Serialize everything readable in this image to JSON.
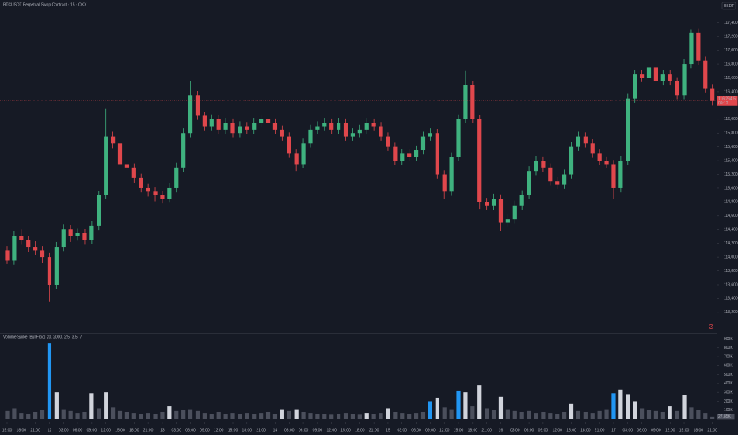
{
  "chart_data": {
    "type": "candlestick",
    "title": "BTCUSDT Perpetual Swap Contract · 15 · OKX",
    "currency": "USDT",
    "up_color": "#3fb27f",
    "down_color": "#e0474c",
    "ylim": [
      112900,
      117730
    ],
    "yticks": [
      {
        "value": 113200,
        "label": "113,200.0"
      },
      {
        "value": 113400,
        "label": "113,400.0"
      },
      {
        "value": 113600,
        "label": "113,600.0"
      },
      {
        "value": 113800,
        "label": "113,800.0"
      },
      {
        "value": 114000,
        "label": "114,000.0"
      },
      {
        "value": 114200,
        "label": "114,200.0"
      },
      {
        "value": 114400,
        "label": "114,400.0"
      },
      {
        "value": 114600,
        "label": "114,600.0"
      },
      {
        "value": 114800,
        "label": "114,800.0"
      },
      {
        "value": 115000,
        "label": "115,000.0"
      },
      {
        "value": 115200,
        "label": "115,200.0"
      },
      {
        "value": 115400,
        "label": "115,400.0"
      },
      {
        "value": 115600,
        "label": "115,600.0"
      },
      {
        "value": 115800,
        "label": "115,800.0"
      },
      {
        "value": 116000,
        "label": "116,000.0"
      },
      {
        "value": 116400,
        "label": "116,400.0"
      },
      {
        "value": 116600,
        "label": "116,600.0"
      },
      {
        "value": 116800,
        "label": "116,800.0"
      },
      {
        "value": 117000,
        "label": "117,000.0"
      },
      {
        "value": 117200,
        "label": "117,200.0"
      },
      {
        "value": 117400,
        "label": "117,400.0"
      }
    ],
    "last_label": "116,264.5",
    "countdown": "09:12",
    "xlim": [
      -1.01,
      100.6
    ],
    "xticks": [
      {
        "value": 0,
        "label": "15:00"
      },
      {
        "value": 2,
        "label": "18:00"
      },
      {
        "value": 4,
        "label": "21:00"
      },
      {
        "value": 6,
        "label": "12"
      },
      {
        "value": 8,
        "label": "03:00"
      },
      {
        "value": 10,
        "label": "06:00"
      },
      {
        "value": 12,
        "label": "09:00"
      },
      {
        "value": 14,
        "label": "12:00"
      },
      {
        "value": 16,
        "label": "15:00"
      },
      {
        "value": 18,
        "label": "18:00"
      },
      {
        "value": 20,
        "label": "21:00"
      },
      {
        "value": 22,
        "label": "13"
      },
      {
        "value": 24,
        "label": "03:00"
      },
      {
        "value": 26,
        "label": "06:00"
      },
      {
        "value": 28,
        "label": "09:00"
      },
      {
        "value": 30,
        "label": "12:00"
      },
      {
        "value": 32,
        "label": "15:00"
      },
      {
        "value": 34,
        "label": "18:00"
      },
      {
        "value": 36,
        "label": "21:00"
      },
      {
        "value": 38,
        "label": "14"
      },
      {
        "value": 40,
        "label": "03:00"
      },
      {
        "value": 42,
        "label": "06:00"
      },
      {
        "value": 44,
        "label": "09:00"
      },
      {
        "value": 46,
        "label": "12:00"
      },
      {
        "value": 48,
        "label": "15:00"
      },
      {
        "value": 50,
        "label": "18:00"
      },
      {
        "value": 52,
        "label": "21:00"
      },
      {
        "value": 54,
        "label": "15"
      },
      {
        "value": 56,
        "label": "03:00"
      },
      {
        "value": 58,
        "label": "06:00"
      },
      {
        "value": 60,
        "label": "09:00"
      },
      {
        "value": 62,
        "label": "12:00"
      },
      {
        "value": 64,
        "label": "15:00"
      },
      {
        "value": 66,
        "label": "18:00"
      },
      {
        "value": 68,
        "label": "21:00"
      },
      {
        "value": 70,
        "label": "16"
      },
      {
        "value": 72,
        "label": "03:00"
      },
      {
        "value": 74,
        "label": "06:00"
      },
      {
        "value": 76,
        "label": "09:00"
      },
      {
        "value": 78,
        "label": "12:00"
      },
      {
        "value": 80,
        "label": "15:00"
      },
      {
        "value": 82,
        "label": "18:00"
      },
      {
        "value": 84,
        "label": "21:00"
      },
      {
        "value": 86,
        "label": "17"
      },
      {
        "value": 88,
        "label": "03:00"
      },
      {
        "value": 90,
        "label": "06:00"
      },
      {
        "value": 92,
        "label": "09:00"
      },
      {
        "value": 94,
        "label": "12:00"
      },
      {
        "value": 96,
        "label": "15:00"
      },
      {
        "value": 98,
        "label": "18:00"
      },
      {
        "value": 100,
        "label": "21:00"
      }
    ],
    "candles": [
      [
        114100,
        114160,
        113900,
        113950
      ],
      [
        113950,
        114380,
        113890,
        114300
      ],
      [
        114300,
        114400,
        114180,
        114250
      ],
      [
        114250,
        114310,
        114080,
        114150
      ],
      [
        114150,
        114230,
        114030,
        114100
      ],
      [
        114100,
        114160,
        113920,
        114000
      ],
      [
        114000,
        114060,
        113350,
        113600
      ],
      [
        113600,
        114220,
        113540,
        114150
      ],
      [
        114150,
        114480,
        114090,
        114400
      ],
      [
        114400,
        114460,
        114220,
        114300
      ],
      [
        114300,
        114420,
        114240,
        114350
      ],
      [
        114350,
        114410,
        114180,
        114250
      ],
      [
        114250,
        114520,
        114190,
        114450
      ],
      [
        114450,
        114960,
        114390,
        114900
      ],
      [
        114900,
        116150,
        114840,
        115750
      ],
      [
        115750,
        115820,
        115580,
        115650
      ],
      [
        115650,
        115710,
        115290,
        115350
      ],
      [
        115350,
        115420,
        115230,
        115300
      ],
      [
        115300,
        115360,
        115080,
        115150
      ],
      [
        115150,
        115210,
        114940,
        115000
      ],
      [
        115000,
        115060,
        114880,
        114950
      ],
      [
        114950,
        115010,
        114810,
        114900
      ],
      [
        114900,
        114960,
        114780,
        114850
      ],
      [
        114850,
        115070,
        114790,
        115000
      ],
      [
        115000,
        115370,
        114940,
        115300
      ],
      [
        115300,
        115870,
        115240,
        115800
      ],
      [
        115800,
        116550,
        115740,
        116350
      ],
      [
        116350,
        116410,
        115990,
        116050
      ],
      [
        116050,
        116110,
        115840,
        115900
      ],
      [
        115900,
        116070,
        115840,
        116000
      ],
      [
        116000,
        116060,
        115790,
        115850
      ],
      [
        115850,
        116020,
        115790,
        115950
      ],
      [
        115950,
        116010,
        115740,
        115800
      ],
      [
        115800,
        115970,
        115740,
        115900
      ],
      [
        115900,
        115960,
        115790,
        115850
      ],
      [
        115850,
        116020,
        115790,
        115950
      ],
      [
        115950,
        116070,
        115890,
        116000
      ],
      [
        116000,
        116060,
        115890,
        115950
      ],
      [
        115950,
        116010,
        115790,
        115850
      ],
      [
        115850,
        115910,
        115690,
        115750
      ],
      [
        115750,
        115810,
        115440,
        115500
      ],
      [
        115500,
        115560,
        115250,
        115350
      ],
      [
        115350,
        115720,
        115290,
        115650
      ],
      [
        115650,
        115920,
        115590,
        115850
      ],
      [
        115850,
        115970,
        115790,
        115900
      ],
      [
        115900,
        116020,
        115840,
        115950
      ],
      [
        115950,
        116010,
        115790,
        115850
      ],
      [
        115850,
        116020,
        115790,
        115950
      ],
      [
        115950,
        116010,
        115690,
        115750
      ],
      [
        115750,
        115870,
        115690,
        115800
      ],
      [
        115800,
        115920,
        115740,
        115850
      ],
      [
        115850,
        116020,
        115790,
        115950
      ],
      [
        115950,
        116010,
        115840,
        115900
      ],
      [
        115900,
        115960,
        115690,
        115750
      ],
      [
        115750,
        115810,
        115540,
        115600
      ],
      [
        115600,
        115660,
        115340,
        115400
      ],
      [
        115400,
        115570,
        115340,
        115500
      ],
      [
        115500,
        115560,
        115390,
        115450
      ],
      [
        115450,
        115620,
        115390,
        115550
      ],
      [
        115550,
        115820,
        115490,
        115750
      ],
      [
        115750,
        115870,
        115690,
        115800
      ],
      [
        115800,
        115860,
        115140,
        115200
      ],
      [
        115200,
        115260,
        114850,
        114950
      ],
      [
        114950,
        115520,
        114890,
        115450
      ],
      [
        115450,
        116070,
        115390,
        116000
      ],
      [
        116000,
        116700,
        115940,
        116500
      ],
      [
        116500,
        116560,
        115940,
        116000
      ],
      [
        116000,
        116060,
        114700,
        114800
      ],
      [
        114800,
        114860,
        114690,
        114750
      ],
      [
        114750,
        114920,
        114690,
        114850
      ],
      [
        114850,
        114910,
        114380,
        114500
      ],
      [
        114500,
        114620,
        114440,
        114550
      ],
      [
        114550,
        114820,
        114490,
        114750
      ],
      [
        114750,
        114970,
        114690,
        114900
      ],
      [
        114900,
        115320,
        114840,
        115250
      ],
      [
        115250,
        115470,
        115190,
        115400
      ],
      [
        115400,
        115460,
        115240,
        115300
      ],
      [
        115300,
        115360,
        115040,
        115100
      ],
      [
        115100,
        115160,
        114990,
        115050
      ],
      [
        115050,
        115270,
        114990,
        115200
      ],
      [
        115200,
        115670,
        115140,
        115600
      ],
      [
        115600,
        115820,
        115540,
        115750
      ],
      [
        115750,
        115810,
        115590,
        115650
      ],
      [
        115650,
        115710,
        115440,
        115500
      ],
      [
        115500,
        115560,
        115340,
        115400
      ],
      [
        115400,
        115460,
        115290,
        115350
      ],
      [
        115350,
        115410,
        114850,
        115000
      ],
      [
        115000,
        115470,
        114940,
        115400
      ],
      [
        115400,
        116370,
        115340,
        116300
      ],
      [
        116300,
        116720,
        116240,
        116650
      ],
      [
        116650,
        116710,
        116540,
        116600
      ],
      [
        116600,
        116820,
        116540,
        116750
      ],
      [
        116750,
        116810,
        116490,
        116550
      ],
      [
        116550,
        116720,
        116490,
        116650
      ],
      [
        116650,
        116710,
        116490,
        116550
      ],
      [
        116550,
        116610,
        116290,
        116350
      ],
      [
        116350,
        116870,
        116290,
        116800
      ],
      [
        116800,
        117300,
        116740,
        117250
      ],
      [
        117250,
        117310,
        116790,
        116850
      ],
      [
        116850,
        116910,
        116390,
        116450
      ],
      [
        116450,
        116510,
        116200,
        116264.5
      ]
    ],
    "volume": {
      "type": "bar",
      "title": "Volume Spike [BullFrog] 20, 2000, 2.5, 3.5, 7",
      "ylim": [
        0,
        940000
      ],
      "yticks": [
        {
          "value": 100000,
          "label": "100K"
        },
        {
          "value": 200000,
          "label": "200K"
        },
        {
          "value": 300000,
          "label": "300K"
        },
        {
          "value": 400000,
          "label": "400K"
        },
        {
          "value": 500000,
          "label": "500K"
        },
        {
          "value": 600000,
          "label": "600K"
        },
        {
          "value": 700000,
          "label": "700K"
        },
        {
          "value": 800000,
          "label": "800K"
        },
        {
          "value": 900000,
          "label": "900K"
        }
      ],
      "last_label": "27.85K",
      "values": [
        90000,
        120000,
        70000,
        60000,
        80000,
        100000,
        850000,
        300000,
        110000,
        90000,
        70000,
        80000,
        290000,
        120000,
        300000,
        130000,
        90000,
        80000,
        70000,
        60000,
        70000,
        60000,
        80000,
        150000,
        90000,
        100000,
        110000,
        90000,
        70000,
        60000,
        80000,
        60000,
        70000,
        60000,
        70000,
        60000,
        70000,
        80000,
        60000,
        110000,
        90000,
        110000,
        80000,
        70000,
        60000,
        60000,
        50000,
        60000,
        70000,
        60000,
        50000,
        70000,
        60000,
        70000,
        120000,
        80000,
        70000,
        60000,
        70000,
        80000,
        200000,
        240000,
        130000,
        110000,
        320000,
        300000,
        150000,
        380000,
        120000,
        100000,
        250000,
        110000,
        90000,
        80000,
        90000,
        70000,
        80000,
        70000,
        60000,
        80000,
        170000,
        90000,
        80000,
        70000,
        90000,
        110000,
        290000,
        330000,
        280000,
        200000,
        120000,
        100000,
        90000,
        80000,
        150000,
        90000,
        270000,
        130000,
        100000,
        70000,
        27850
      ],
      "colors": [
        "#4b4f5c",
        "#4b4f5c",
        "#4b4f5c",
        "#4b4f5c",
        "#4b4f5c",
        "#4b4f5c",
        "#2196f3",
        "#d1d4dc",
        "#4b4f5c",
        "#4b4f5c",
        "#4b4f5c",
        "#4b4f5c",
        "#d1d4dc",
        "#4b4f5c",
        "#d1d4dc",
        "#4b4f5c",
        "#4b4f5c",
        "#4b4f5c",
        "#4b4f5c",
        "#4b4f5c",
        "#4b4f5c",
        "#4b4f5c",
        "#4b4f5c",
        "#d1d4dc",
        "#4b4f5c",
        "#4b4f5c",
        "#4b4f5c",
        "#4b4f5c",
        "#4b4f5c",
        "#4b4f5c",
        "#4b4f5c",
        "#4b4f5c",
        "#4b4f5c",
        "#4b4f5c",
        "#4b4f5c",
        "#4b4f5c",
        "#4b4f5c",
        "#4b4f5c",
        "#4b4f5c",
        "#d1d4dc",
        "#4b4f5c",
        "#d1d4dc",
        "#4b4f5c",
        "#4b4f5c",
        "#4b4f5c",
        "#4b4f5c",
        "#4b4f5c",
        "#4b4f5c",
        "#4b4f5c",
        "#4b4f5c",
        "#4b4f5c",
        "#d1d4dc",
        "#4b4f5c",
        "#4b4f5c",
        "#d1d4dc",
        "#4b4f5c",
        "#4b4f5c",
        "#4b4f5c",
        "#4b4f5c",
        "#4b4f5c",
        "#2196f3",
        "#d1d4dc",
        "#4b4f5c",
        "#4b4f5c",
        "#2196f3",
        "#d1d4dc",
        "#4b4f5c",
        "#d1d4dc",
        "#4b4f5c",
        "#4b4f5c",
        "#d1d4dc",
        "#4b4f5c",
        "#4b4f5c",
        "#4b4f5c",
        "#4b4f5c",
        "#4b4f5c",
        "#4b4f5c",
        "#4b4f5c",
        "#4b4f5c",
        "#4b4f5c",
        "#d1d4dc",
        "#4b4f5c",
        "#4b4f5c",
        "#4b4f5c",
        "#4b4f5c",
        "#4b4f5c",
        "#2196f3",
        "#d1d4dc",
        "#d1d4dc",
        "#d1d4dc",
        "#4b4f5c",
        "#4b4f5c",
        "#4b4f5c",
        "#4b4f5c",
        "#d1d4dc",
        "#4b4f5c",
        "#d1d4dc",
        "#4b4f5c",
        "#4b4f5c",
        "#4b4f5c",
        "#4b4f5c"
      ]
    }
  }
}
